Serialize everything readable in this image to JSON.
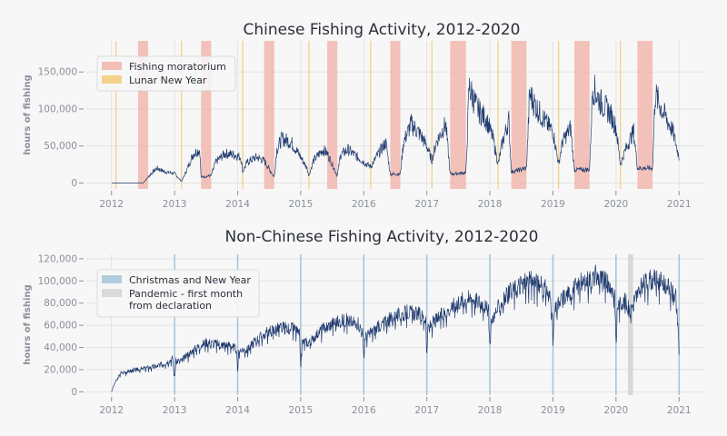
{
  "colors": {
    "background": "#f7f7f7",
    "grid": "#e3e3e3",
    "line": "#1f3a6e",
    "moratorium": "#f1b7ae",
    "lunar": "#f2cd7e",
    "christmas": "#a9c6d8",
    "pandemic": "#d6d6d6",
    "text": "#2b2f3a",
    "tick": "#8a8f9c"
  },
  "chart_data": [
    {
      "type": "line",
      "title": "Chinese Fishing Activity, 2012-2020",
      "ylabel": "hours of fishing",
      "xlabel": "",
      "xlim": [
        2011.6,
        2021.4
      ],
      "ylim": [
        -8000,
        192000
      ],
      "x_ticks": [
        2012,
        2013,
        2014,
        2015,
        2016,
        2017,
        2018,
        2019,
        2020,
        2021
      ],
      "x_tick_labels": [
        "2012",
        "2013",
        "2014",
        "2015",
        "2016",
        "2017",
        "2018",
        "2019",
        "2020",
        "2021"
      ],
      "y_ticks": [
        0,
        50000,
        100000,
        150000
      ],
      "y_tick_labels": [
        "0",
        "50,000",
        "100,000",
        "150,000"
      ],
      "legend": {
        "position": "top-left",
        "entries": [
          {
            "label": "Fishing moratorium",
            "color_key": "moratorium"
          },
          {
            "label": "Lunar New Year",
            "color_key": "lunar"
          }
        ]
      },
      "shaded_spans": [
        {
          "kind": "moratorium",
          "start": 2012.42,
          "end": 2012.58
        },
        {
          "kind": "moratorium",
          "start": 2013.42,
          "end": 2013.58
        },
        {
          "kind": "moratorium",
          "start": 2014.42,
          "end": 2014.58
        },
        {
          "kind": "moratorium",
          "start": 2015.42,
          "end": 2015.58
        },
        {
          "kind": "moratorium",
          "start": 2016.42,
          "end": 2016.58
        },
        {
          "kind": "moratorium",
          "start": 2017.37,
          "end": 2017.62
        },
        {
          "kind": "moratorium",
          "start": 2018.34,
          "end": 2018.58
        },
        {
          "kind": "moratorium",
          "start": 2019.34,
          "end": 2019.58
        },
        {
          "kind": "moratorium",
          "start": 2020.34,
          "end": 2020.58
        }
      ],
      "vertical_lines": [
        {
          "kind": "lunar",
          "x": 2012.07
        },
        {
          "kind": "lunar",
          "x": 2013.11
        },
        {
          "kind": "lunar",
          "x": 2014.08
        },
        {
          "kind": "lunar",
          "x": 2015.13
        },
        {
          "kind": "lunar",
          "x": 2016.11
        },
        {
          "kind": "lunar",
          "x": 2017.08
        },
        {
          "kind": "lunar",
          "x": 2018.13
        },
        {
          "kind": "lunar",
          "x": 2019.09
        },
        {
          "kind": "lunar",
          "x": 2020.07
        }
      ],
      "series": [
        {
          "x": [
            2012.0,
            2012.5,
            2012.62,
            2012.72,
            2012.85,
            2013.0,
            2013.08,
            2013.11,
            2013.18,
            2013.3,
            2013.4,
            2013.42,
            2013.58,
            2013.65,
            2013.8,
            2013.95,
            2014.05,
            2014.08,
            2014.15,
            2014.3,
            2014.42,
            2014.58,
            2014.62,
            2014.7,
            2014.85,
            2015.0,
            2015.1,
            2015.13,
            2015.2,
            2015.35,
            2015.42,
            2015.58,
            2015.63,
            2015.75,
            2015.9,
            2016.05,
            2016.11,
            2016.2,
            2016.35,
            2016.42,
            2016.58,
            2016.63,
            2016.75,
            2016.9,
            2017.0,
            2017.08,
            2017.15,
            2017.3,
            2017.37,
            2017.62,
            2017.67,
            2017.8,
            2017.95,
            2018.05,
            2018.13,
            2018.2,
            2018.3,
            2018.34,
            2018.58,
            2018.63,
            2018.75,
            2018.9,
            2019.0,
            2019.09,
            2019.15,
            2019.28,
            2019.34,
            2019.58,
            2019.63,
            2019.75,
            2019.9,
            2020.0,
            2020.07,
            2020.15,
            2020.28,
            2020.34,
            2020.58,
            2020.62,
            2020.75,
            2020.9,
            2021.0
          ],
          "y": [
            0,
            0,
            12000,
            20000,
            15000,
            13000,
            5000,
            2000,
            15000,
            40000,
            45000,
            8000,
            10000,
            28000,
            40000,
            38000,
            35000,
            15000,
            28000,
            35000,
            30000,
            8000,
            45000,
            60000,
            55000,
            35000,
            20000,
            10000,
            30000,
            45000,
            40000,
            10000,
            38000,
            45000,
            35000,
            25000,
            22000,
            35000,
            55000,
            12000,
            12000,
            55000,
            80000,
            65000,
            50000,
            30000,
            55000,
            80000,
            12000,
            14000,
            130000,
            100000,
            85000,
            60000,
            25000,
            55000,
            85000,
            15000,
            20000,
            120000,
            100000,
            80000,
            70000,
            25000,
            55000,
            75000,
            18000,
            18000,
            130000,
            110000,
            95000,
            75000,
            25000,
            45000,
            70000,
            20000,
            20000,
            120000,
            95000,
            70000,
            35000
          ]
        }
      ]
    },
    {
      "type": "line",
      "title": "Non-Chinese Fishing Activity, 2012-2020",
      "ylabel": "hours of fishing",
      "xlabel": "",
      "xlim": [
        2011.6,
        2021.4
      ],
      "ylim": [
        -3000,
        124000
      ],
      "x_ticks": [
        2012,
        2013,
        2014,
        2015,
        2016,
        2017,
        2018,
        2019,
        2020,
        2021
      ],
      "x_tick_labels": [
        "2012",
        "2013",
        "2014",
        "2015",
        "2016",
        "2017",
        "2018",
        "2019",
        "2020",
        "2021"
      ],
      "y_ticks": [
        0,
        20000,
        40000,
        60000,
        80000,
        100000,
        120000
      ],
      "y_tick_labels": [
        "0",
        "20,000",
        "40,000",
        "60,000",
        "80,000",
        "100,000",
        "120,000"
      ],
      "legend": {
        "position": "top-left",
        "entries": [
          {
            "label": "Christmas and New Year",
            "color_key": "christmas"
          },
          {
            "label": "Pandemic - first month",
            "label_line2": "from declaration",
            "color_key": "pandemic"
          }
        ]
      },
      "shaded_spans": [
        {
          "kind": "pandemic",
          "start": 2020.19,
          "end": 2020.27
        }
      ],
      "vertical_lines": [
        {
          "kind": "christmas",
          "x": 2013.0
        },
        {
          "kind": "christmas",
          "x": 2014.0
        },
        {
          "kind": "christmas",
          "x": 2015.0
        },
        {
          "kind": "christmas",
          "x": 2016.0
        },
        {
          "kind": "christmas",
          "x": 2017.0
        },
        {
          "kind": "christmas",
          "x": 2018.0
        },
        {
          "kind": "christmas",
          "x": 2019.0
        },
        {
          "kind": "christmas",
          "x": 2020.0
        },
        {
          "kind": "christmas",
          "x": 2021.0
        }
      ],
      "series": [
        {
          "x": [
            2012.0,
            2012.05,
            2012.15,
            2012.3,
            2012.5,
            2012.7,
            2012.85,
            2012.97,
            2013.0,
            2013.02,
            2013.1,
            2013.3,
            2013.5,
            2013.7,
            2013.9,
            2013.98,
            2014.0,
            2014.02,
            2014.15,
            2014.3,
            2014.5,
            2014.7,
            2014.9,
            2014.98,
            2015.0,
            2015.02,
            2015.15,
            2015.3,
            2015.5,
            2015.7,
            2015.9,
            2015.98,
            2016.0,
            2016.02,
            2016.15,
            2016.3,
            2016.5,
            2016.7,
            2016.9,
            2016.98,
            2017.0,
            2017.02,
            2017.15,
            2017.3,
            2017.5,
            2017.7,
            2017.9,
            2017.98,
            2018.0,
            2018.02,
            2018.15,
            2018.3,
            2018.5,
            2018.7,
            2018.9,
            2018.98,
            2019.0,
            2019.02,
            2019.15,
            2019.3,
            2019.5,
            2019.7,
            2019.9,
            2019.98,
            2020.0,
            2020.02,
            2020.15,
            2020.22,
            2020.3,
            2020.45,
            2020.6,
            2020.8,
            2020.95,
            2021.0
          ],
          "y": [
            0,
            8000,
            17000,
            19000,
            21000,
            23000,
            26000,
            30000,
            12000,
            28000,
            28000,
            38000,
            45000,
            43000,
            42000,
            38000,
            18000,
            38000,
            38000,
            47000,
            55000,
            58000,
            57000,
            52000,
            22000,
            45000,
            45000,
            55000,
            62000,
            65000,
            62000,
            55000,
            30000,
            50000,
            55000,
            62000,
            68000,
            72000,
            70000,
            65000,
            34000,
            58000,
            65000,
            72000,
            82000,
            85000,
            80000,
            72000,
            36000,
            65000,
            78000,
            88000,
            98000,
            100000,
            92000,
            82000,
            42000,
            72000,
            85000,
            92000,
            100000,
            105000,
            96000,
            90000,
            40000,
            78000,
            82000,
            72000,
            85000,
            98000,
            102000,
            96000,
            85000,
            40000
          ]
        }
      ]
    }
  ]
}
